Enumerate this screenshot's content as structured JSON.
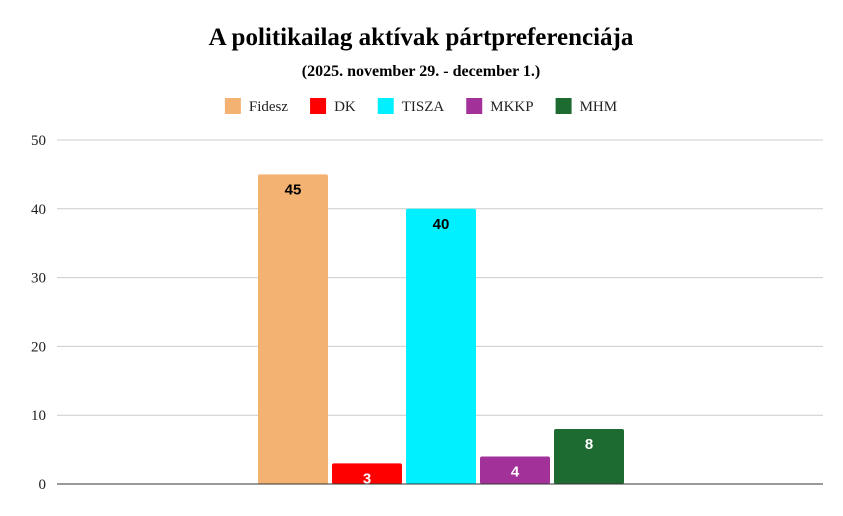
{
  "chart_data": {
    "type": "bar",
    "title": "A politikailag aktívak pártpreferenciája",
    "subtitle": "(2025. november 29. - december 1.)",
    "xlabel": "",
    "ylabel": "",
    "ylim": [
      0,
      50
    ],
    "yticks": [
      0,
      10,
      20,
      30,
      40,
      50
    ],
    "grid": true,
    "legend_position": "top",
    "series": [
      {
        "name": "Fidesz",
        "value": 45,
        "label": "45",
        "color": "#F4B272",
        "label_color": "#000000"
      },
      {
        "name": "DK",
        "value": 3,
        "label": "3",
        "color": "#FF0000",
        "label_color": "#FFFFFF"
      },
      {
        "name": "TISZA",
        "value": 40,
        "label": "40",
        "color": "#00F0FF",
        "label_color": "#000000"
      },
      {
        "name": "MKKP",
        "value": 4,
        "label": "4",
        "color": "#A2329A",
        "label_color": "#FFFFFF"
      },
      {
        "name": "MHM",
        "value": 8,
        "label": "8",
        "color": "#1E6B32",
        "label_color": "#FFFFFF"
      }
    ]
  }
}
